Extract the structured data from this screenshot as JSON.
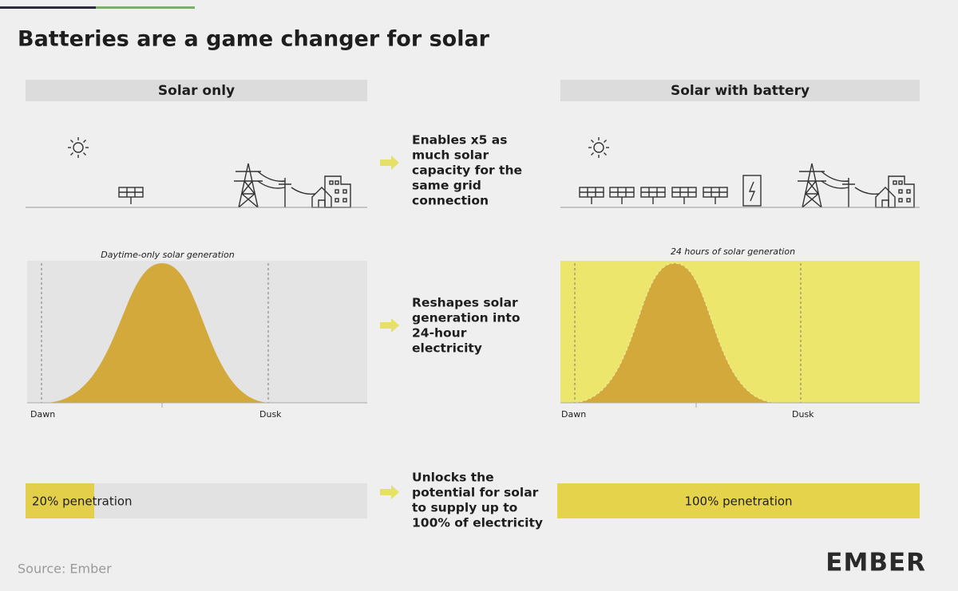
{
  "title": "Batteries are a game changer for solar",
  "panels": [
    {
      "header": "Solar only",
      "chart_label": "Daytime-only solar generation",
      "axis_labels": [
        "Dawn",
        "Dusk"
      ],
      "penetration": "20% penetration"
    },
    {
      "header": "Solar with battery",
      "chart_label": "24 hours of solar generation",
      "axis_labels": [
        "Dawn",
        "Dusk"
      ],
      "penetration": "100% penetration"
    }
  ],
  "benefits": [
    [
      "Enables x5 as",
      "much solar",
      "capacity for the",
      "same grid",
      "connection"
    ],
    [
      "Reshapes solar",
      "generation into",
      "24-hour",
      "electricity"
    ],
    [
      "Unlocks the",
      "potential for solar",
      "to supply up to",
      "100% of electricity"
    ]
  ],
  "source": "Source: Ember",
  "logo": "EMBER"
}
